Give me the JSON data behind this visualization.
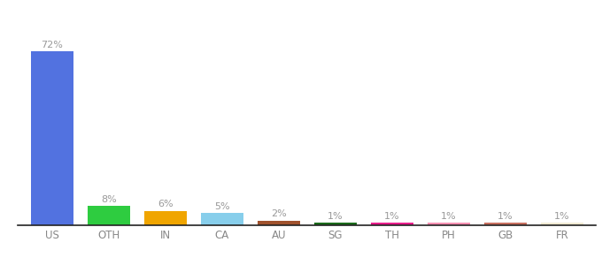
{
  "categories": [
    "US",
    "OTH",
    "IN",
    "CA",
    "AU",
    "SG",
    "TH",
    "PH",
    "GB",
    "FR"
  ],
  "values": [
    72,
    8,
    6,
    5,
    2,
    1,
    1,
    1,
    1,
    1
  ],
  "labels": [
    "72%",
    "8%",
    "6%",
    "5%",
    "2%",
    "1%",
    "1%",
    "1%",
    "1%",
    "1%"
  ],
  "colors": [
    "#5272e0",
    "#2ecc40",
    "#f0a500",
    "#87ceeb",
    "#a0522d",
    "#1a6b1a",
    "#e91e8c",
    "#f48fb1",
    "#c87060",
    "#f0ead2"
  ],
  "ylim": [
    0,
    80
  ],
  "background_color": "#ffffff",
  "label_color": "#999999",
  "label_fontsize": 8,
  "tick_color": "#888888",
  "tick_fontsize": 8.5,
  "bar_width": 0.75
}
